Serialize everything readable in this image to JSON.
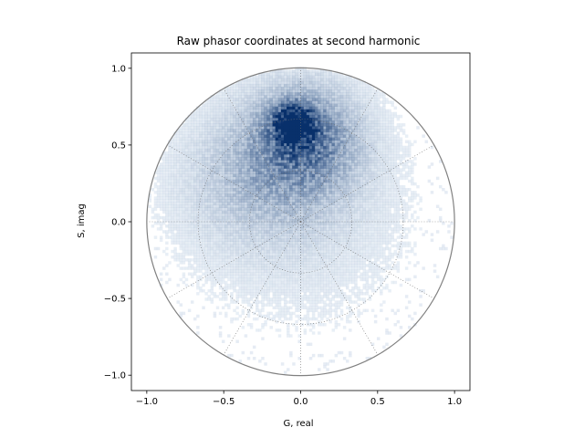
{
  "chart_data": {
    "type": "heatmap",
    "title": "Raw phasor coordinates at second harmonic",
    "xlabel": "G, real",
    "ylabel": "S, imag",
    "xlim": [
      -1.1,
      1.1
    ],
    "ylim": [
      -1.1,
      1.1
    ],
    "xticks": [
      -1.0,
      -0.5,
      0.0,
      0.5,
      1.0
    ],
    "yticks": [
      -1.0,
      -0.5,
      0.0,
      0.5,
      1.0
    ],
    "xtick_labels": [
      "−1.0",
      "−0.5",
      "0.0",
      "0.5",
      "1.0"
    ],
    "ytick_labels": [
      "−1.0",
      "−0.5",
      "0.0",
      "0.5",
      "1.0"
    ],
    "colormap": "Blues",
    "density_peak": {
      "g": -0.05,
      "s": 0.64
    },
    "density_clusters": [
      {
        "g": -0.05,
        "s": 0.64,
        "spread_g": 0.08,
        "spread_s": 0.08,
        "weight": 1.0
      },
      {
        "g": 0.02,
        "s": 0.55,
        "spread_g": 0.22,
        "spread_s": 0.22,
        "weight": 0.55
      },
      {
        "g": -0.2,
        "s": 0.3,
        "spread_g": 0.35,
        "spread_s": 0.3,
        "weight": 0.25
      },
      {
        "g": 0.0,
        "s": 0.0,
        "spread_g": 0.6,
        "spread_s": 0.6,
        "weight": 0.06
      }
    ],
    "polar_grid": {
      "unit_circle_radius": 1.0,
      "circle_radii": [
        0.333,
        0.667
      ],
      "spoke_angles_deg": [
        0,
        30,
        60,
        90,
        120,
        150,
        180,
        210,
        240,
        270,
        300,
        330
      ],
      "grid_style": "dotted",
      "unit_circle_color": "#808080"
    },
    "grid": false,
    "legend": false
  }
}
